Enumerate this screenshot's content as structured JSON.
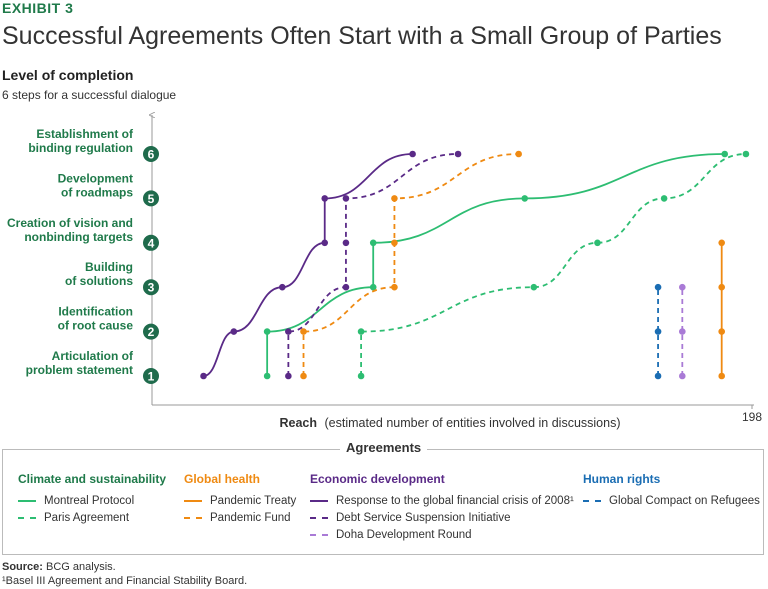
{
  "header": {
    "exhibit": "EXHIBIT 3",
    "title": "Successful Agreements Often Start with a Small Group of Parties",
    "y_title": "Level of completion",
    "y_subtitle": "6 steps for a successful dialogue"
  },
  "colors": {
    "green": "#2dbd72",
    "orange": "#ef8a12",
    "purple": "#5a2a87",
    "light_purple": "#a97ad6",
    "blue": "#1a6db3",
    "step_badge": "#1f6b4c",
    "category_green": "#1f7a4a"
  },
  "chart_data": {
    "type": "line",
    "xlabel_bold": "Reach",
    "xlabel_rest": "(estimated number of entities involved in discussions)",
    "x_max_label": "198",
    "xlim": [
      0,
      198
    ],
    "steps": [
      {
        "number": "1",
        "label_lines": [
          "Articulation of",
          "problem statement"
        ]
      },
      {
        "number": "2",
        "label_lines": [
          "Identification",
          "of root cause"
        ]
      },
      {
        "number": "3",
        "label_lines": [
          "Building",
          "of solutions"
        ]
      },
      {
        "number": "4",
        "label_lines": [
          "Creation of vision and",
          "nonbinding targets"
        ]
      },
      {
        "number": "5",
        "label_lines": [
          "Development",
          "of roadmaps"
        ]
      },
      {
        "number": "6",
        "label_lines": [
          "Establishment of",
          "binding regulation"
        ]
      }
    ],
    "series": [
      {
        "name": "Montreal Protocol",
        "color": "#2dbd72",
        "dashed": false,
        "points": [
          [
            38,
            1
          ],
          [
            38,
            2
          ],
          [
            73,
            3
          ],
          [
            73,
            4
          ],
          [
            123,
            5
          ],
          [
            189,
            6
          ]
        ]
      },
      {
        "name": "Paris Agreement",
        "color": "#2dbd72",
        "dashed": true,
        "points": [
          [
            69,
            1
          ],
          [
            69,
            2
          ],
          [
            126,
            3
          ],
          [
            147,
            4
          ],
          [
            169,
            5
          ],
          [
            196,
            6
          ]
        ]
      },
      {
        "name": "Pandemic Treaty",
        "color": "#ef8a12",
        "dashed": false,
        "points": [
          [
            188,
            1
          ],
          [
            188,
            2
          ],
          [
            188,
            3
          ],
          [
            188,
            4
          ]
        ]
      },
      {
        "name": "Pandemic Fund",
        "color": "#ef8a12",
        "dashed": true,
        "points": [
          [
            50,
            1
          ],
          [
            50,
            2
          ],
          [
            80,
            3
          ],
          [
            80,
            4
          ],
          [
            80,
            5
          ],
          [
            121,
            6
          ]
        ]
      },
      {
        "name": "Response to the global financial crisis of 2008¹",
        "color": "#5a2a87",
        "dashed": false,
        "points": [
          [
            17,
            1
          ],
          [
            27,
            2
          ],
          [
            43,
            3
          ],
          [
            57,
            4
          ],
          [
            57,
            5
          ],
          [
            86,
            6
          ]
        ]
      },
      {
        "name": "Debt Service Suspension Initiative",
        "color": "#5a2a87",
        "dashed": true,
        "points": [
          [
            45,
            1
          ],
          [
            45,
            2
          ],
          [
            64,
            3
          ],
          [
            64,
            4
          ],
          [
            64,
            5
          ],
          [
            101,
            6
          ]
        ]
      },
      {
        "name": "Doha Development Round",
        "color": "#a97ad6",
        "dashed": true,
        "points": [
          [
            175,
            1
          ],
          [
            175,
            2
          ],
          [
            175,
            3
          ]
        ]
      },
      {
        "name": "Global Compact on Refugees",
        "color": "#1a6db3",
        "dashed": true,
        "points": [
          [
            167,
            1
          ],
          [
            167,
            2
          ],
          [
            167,
            3
          ]
        ]
      }
    ]
  },
  "legend": {
    "title": "Agreements",
    "groups": [
      {
        "heading": "Climate and sustainability",
        "color": "#1f7a4a",
        "items": [
          {
            "label": "Montreal Protocol",
            "color": "#2dbd72",
            "dashed": false
          },
          {
            "label": "Paris Agreement",
            "color": "#2dbd72",
            "dashed": true
          }
        ]
      },
      {
        "heading": "Global health",
        "color": "#ef8a12",
        "items": [
          {
            "label": "Pandemic Treaty",
            "color": "#ef8a12",
            "dashed": false
          },
          {
            "label": "Pandemic Fund",
            "color": "#ef8a12",
            "dashed": true
          }
        ]
      },
      {
        "heading": "Economic development",
        "color": "#5a2a87",
        "items": [
          {
            "label": "Response to the global financial crisis of 2008¹",
            "color": "#5a2a87",
            "dashed": false
          },
          {
            "label": "Debt Service Suspension Initiative",
            "color": "#5a2a87",
            "dashed": true
          },
          {
            "label": "Doha Development Round",
            "color": "#a97ad6",
            "dashed": true
          }
        ]
      },
      {
        "heading": "Human rights",
        "color": "#1a6db3",
        "items": [
          {
            "label": "Global Compact on Refugees",
            "color": "#1a6db3",
            "dashed": true
          }
        ]
      }
    ]
  },
  "footer": {
    "source_bold": "Source:",
    "source_text": " BCG analysis.",
    "footnote": "¹Basel III Agreement and Financial Stability Board."
  }
}
